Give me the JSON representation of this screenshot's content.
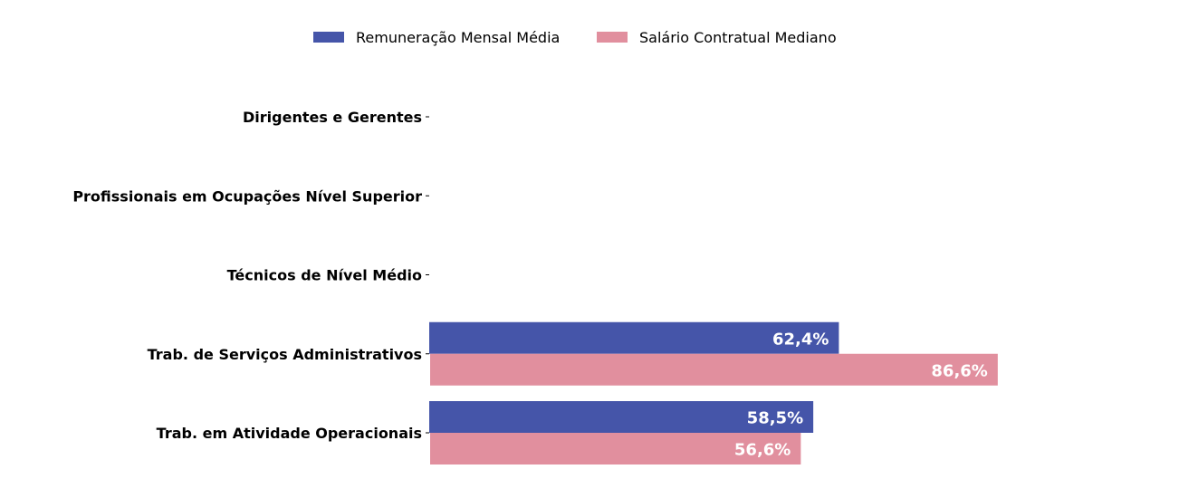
{
  "chart_data": {
    "type": "bar",
    "orientation": "horizontal",
    "categories": [
      "Dirigentes e Gerentes",
      "Profissionais em Ocupações Nível Superior",
      "Técnicos de Nível Médio",
      "Trab. de Serviços Administrativos",
      "Trab. em Atividade Operacionais"
    ],
    "series": [
      {
        "name": "Remuneração Mensal Média",
        "color": "#4555A9",
        "values": [
          null,
          null,
          null,
          62.4,
          58.5
        ],
        "labels": [
          "",
          "",
          "",
          "62,4%",
          "58,5%"
        ]
      },
      {
        "name": "Salário Contratual Mediano",
        "color": "#E18F9E",
        "values": [
          null,
          null,
          null,
          86.6,
          56.6
        ],
        "labels": [
          "",
          "",
          "",
          "86,6%",
          "56,6%"
        ]
      }
    ],
    "xlim": [
      0,
      100
    ],
    "legend": "top-center",
    "grid": false,
    "x_axis_visible": false
  }
}
